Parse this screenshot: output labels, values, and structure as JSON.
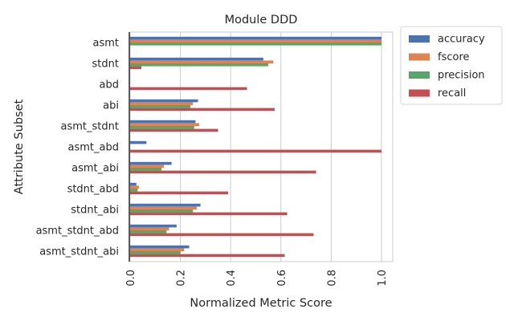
{
  "chart_data": {
    "type": "bar",
    "orientation": "horizontal",
    "title": "Module DDD",
    "xlabel": "Normalized Metric Score",
    "ylabel": "Attribute Subset",
    "xlim": [
      0,
      1.05
    ],
    "xticks": [
      "0.0",
      "0.2",
      "0.4",
      "0.6",
      "0.8",
      "1.0"
    ],
    "grid": "vertical",
    "legend_position": "outside-top-right",
    "categories": [
      "asmt",
      "stdnt",
      "abd",
      "abi",
      "asmt_stdnt",
      "asmt_abd",
      "asmt_abi",
      "stdnt_abd",
      "stdnt_abi",
      "asmt_stdnt_abd",
      "asmt_stdnt_abi"
    ],
    "series": [
      {
        "name": "accuracy",
        "color": "#4c72b0",
        "values": [
          1.0,
          0.53,
          0.0,
          0.27,
          0.26,
          0.065,
          0.165,
          0.025,
          0.28,
          0.185,
          0.235
        ]
      },
      {
        "name": "fscore",
        "color": "#dd8452",
        "values": [
          1.0,
          0.57,
          0.0,
          0.25,
          0.275,
          0.0,
          0.135,
          0.035,
          0.265,
          0.155,
          0.215
        ]
      },
      {
        "name": "precision",
        "color": "#55a868",
        "values": [
          1.0,
          0.55,
          0.0,
          0.24,
          0.255,
          0.0,
          0.125,
          0.03,
          0.25,
          0.145,
          0.2
        ]
      },
      {
        "name": "recall",
        "color": "#c44e52",
        "values": [
          0.0,
          0.045,
          0.465,
          0.575,
          0.35,
          1.0,
          0.74,
          0.39,
          0.625,
          0.73,
          0.615
        ]
      }
    ]
  }
}
